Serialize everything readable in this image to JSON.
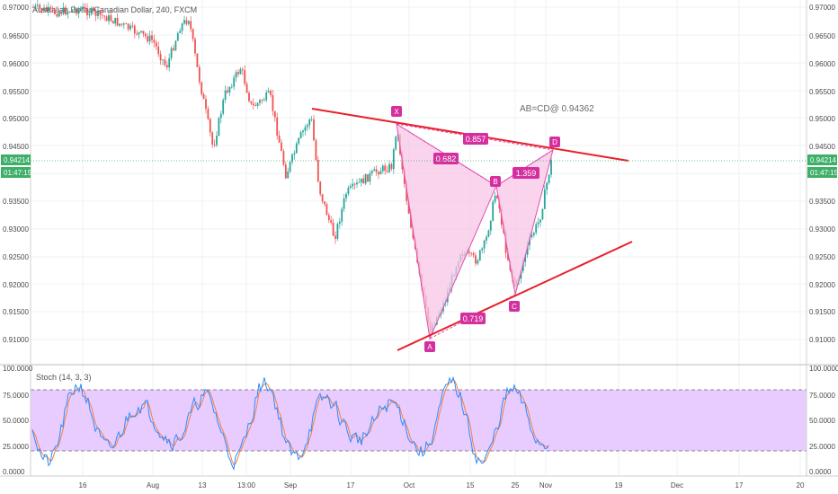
{
  "chart_title": "Australian Dollar/Canadian Dollar, 240, FXCM",
  "price_axis": {
    "ticks": [
      "0.97000",
      "0.96500",
      "0.96000",
      "0.95500",
      "0.95000",
      "0.94500",
      "0.94000",
      "0.93500",
      "0.93000",
      "0.92500",
      "0.92000",
      "0.91500",
      "0.91000"
    ],
    "current_price": "0.94214",
    "countdown": "01:47:15"
  },
  "time_axis": {
    "labels": [
      "16",
      "Aug",
      "13",
      "13:00",
      "Sep",
      "17",
      "Oct",
      "15",
      "25",
      "Nov",
      "19",
      "Dec",
      "17",
      "20"
    ]
  },
  "pattern": {
    "points": {
      "X": "X",
      "A": "A",
      "B": "B",
      "C": "C",
      "D": "D"
    },
    "ratios": {
      "xb": "0.682",
      "ac": "0.719",
      "bd": "1.359",
      "xd": "0.857"
    },
    "annotation": "AB=CD@ 0.94362",
    "fill_color": "#f7c6e6",
    "line_color": "#e04fb0"
  },
  "trendline_color": "#e8202a",
  "stoch": {
    "title": "Stoch (14, 3, 3)",
    "ticks": [
      "100.0000",
      "75.0000",
      "50.0000",
      "25.0000",
      "0.0000"
    ],
    "band_color": "#e9ccff"
  },
  "colors": {
    "up": "#26a69a",
    "down": "#ef5350",
    "accent": "#4caf50",
    "k": "#2a8cff",
    "d": "#f5803e"
  }
}
